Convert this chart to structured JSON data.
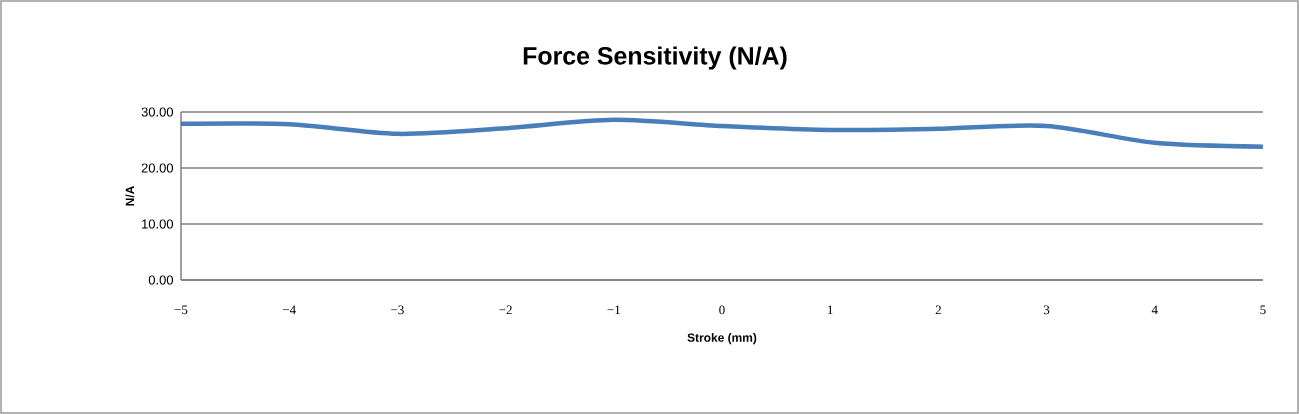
{
  "chart_data": {
    "type": "line",
    "title": "Force Sensitivity (N/A)",
    "xlabel": "Stroke (mm)",
    "ylabel": "N/A",
    "x": [
      -5,
      -4,
      -3,
      -2,
      -1,
      0,
      1,
      2,
      3,
      4,
      5
    ],
    "series": [
      {
        "color": "#4a7ebb",
        "values": [
          27.9,
          27.8,
          26.1,
          27.1,
          28.6,
          27.5,
          26.8,
          27.0,
          27.5,
          24.5,
          23.8
        ]
      }
    ],
    "xlim": [
      -5,
      5
    ],
    "xticks": [
      {
        "value": -5,
        "label": "−5"
      },
      {
        "value": -4,
        "label": "−4"
      },
      {
        "value": -3,
        "label": "−3"
      },
      {
        "value": -2,
        "label": "−2"
      },
      {
        "value": -1,
        "label": "−1"
      },
      0,
      1,
      2,
      3,
      4,
      5
    ],
    "ylim": [
      0,
      30
    ],
    "yticks": [
      {
        "value": 0,
        "label": "0.00"
      },
      {
        "value": 10,
        "label": "10.00"
      },
      {
        "value": 20,
        "label": "20.00"
      },
      {
        "value": 30,
        "label": "30.00"
      }
    ],
    "grid": "y",
    "marker": "none",
    "line_style": "solid"
  }
}
